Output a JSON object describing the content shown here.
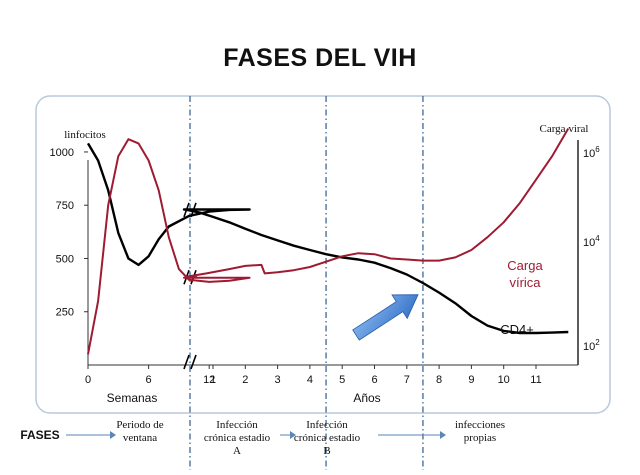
{
  "chart_data": {
    "type": "line",
    "title": "FASES DEL VIH",
    "y_left_label": "linfocitos",
    "y_right_label": "Carga viral",
    "y_left_ticks": [
      "1000",
      "750",
      "500",
      "250"
    ],
    "y_left_range": [
      0,
      1150
    ],
    "y_right_ticks": [
      {
        "base": "10",
        "exp": "6"
      },
      {
        "base": "10",
        "exp": "4"
      },
      {
        "base": "10",
        "exp": "2"
      }
    ],
    "x_weeks_ticks": [
      "0",
      "6",
      "12"
    ],
    "x_years_ticks": [
      "1",
      "2",
      "3",
      "4",
      "5",
      "6",
      "7",
      "8",
      "9",
      "10",
      "11"
    ],
    "x_weeks_label": "Semanas",
    "x_years_label": "Años",
    "phase_dividers_years": [
      1.5,
      4.5,
      7.5
    ],
    "series": [
      {
        "name": "CD4+",
        "label": "CD4+",
        "color": "#000000",
        "unit": "linfocitos",
        "points": [
          [
            0,
            1040
          ],
          [
            1,
            960
          ],
          [
            2,
            820
          ],
          [
            3,
            620
          ],
          [
            4,
            500
          ],
          [
            5,
            470
          ],
          [
            6,
            510
          ],
          [
            7,
            590
          ],
          [
            8,
            650
          ],
          [
            10,
            700
          ],
          [
            12,
            720
          ],
          [
            14,
            728
          ],
          [
            16,
            730
          ],
          [
            0.2,
            728
          ],
          [
            0.6,
            715
          ],
          [
            1.0,
            695
          ],
          [
            1.5,
            670
          ],
          [
            2.0,
            640
          ],
          [
            2.5,
            610
          ],
          [
            3.0,
            585
          ],
          [
            3.5,
            560
          ],
          [
            4.0,
            540
          ],
          [
            4.5,
            520
          ],
          [
            5.0,
            505
          ],
          [
            5.5,
            495
          ],
          [
            6.0,
            480
          ],
          [
            6.5,
            455
          ],
          [
            7.0,
            425
          ],
          [
            7.5,
            385
          ],
          [
            8.0,
            340
          ],
          [
            8.5,
            290
          ],
          [
            9.0,
            230
          ],
          [
            9.5,
            185
          ],
          [
            10.0,
            160
          ],
          [
            10.5,
            150
          ],
          [
            11.0,
            150
          ],
          [
            11.5,
            152
          ],
          [
            12.0,
            155
          ]
        ]
      },
      {
        "name": "Carga vírica",
        "label": [
          "Carga",
          "vírica"
        ],
        "color": "#9e1b32",
        "unit": "linfocitos",
        "points": [
          [
            0,
            50
          ],
          [
            1,
            300
          ],
          [
            2,
            750
          ],
          [
            3,
            980
          ],
          [
            4,
            1060
          ],
          [
            5,
            1040
          ],
          [
            6,
            960
          ],
          [
            7,
            820
          ],
          [
            8,
            600
          ],
          [
            9,
            450
          ],
          [
            10,
            400
          ],
          [
            12,
            390
          ],
          [
            14,
            395
          ],
          [
            16,
            410
          ],
          [
            0.2,
            415
          ],
          [
            0.8,
            430
          ],
          [
            1.5,
            450
          ],
          [
            2.0,
            465
          ],
          [
            2.5,
            470
          ],
          [
            2.6,
            430
          ],
          [
            3.0,
            435
          ],
          [
            3.5,
            445
          ],
          [
            4.0,
            460
          ],
          [
            4.5,
            485
          ],
          [
            5.0,
            510
          ],
          [
            5.5,
            525
          ],
          [
            6.0,
            520
          ],
          [
            6.5,
            500
          ],
          [
            7.0,
            495
          ],
          [
            7.5,
            490
          ],
          [
            8.0,
            490
          ],
          [
            8.5,
            505
          ],
          [
            9.0,
            540
          ],
          [
            9.5,
            600
          ],
          [
            10.0,
            670
          ],
          [
            10.5,
            760
          ],
          [
            11.0,
            870
          ],
          [
            11.5,
            980
          ],
          [
            12.0,
            1110
          ]
        ]
      }
    ],
    "phases_label": "FASES",
    "phases": [
      {
        "name": [
          "Periodo de",
          "ventana"
        ]
      },
      {
        "name": [
          "Infección",
          "crónica estadio",
          "A"
        ]
      },
      {
        "name": [
          "Infección",
          "crónica estadio",
          "B"
        ]
      },
      {
        "name": [
          "infecciones",
          "propias"
        ]
      }
    ]
  }
}
